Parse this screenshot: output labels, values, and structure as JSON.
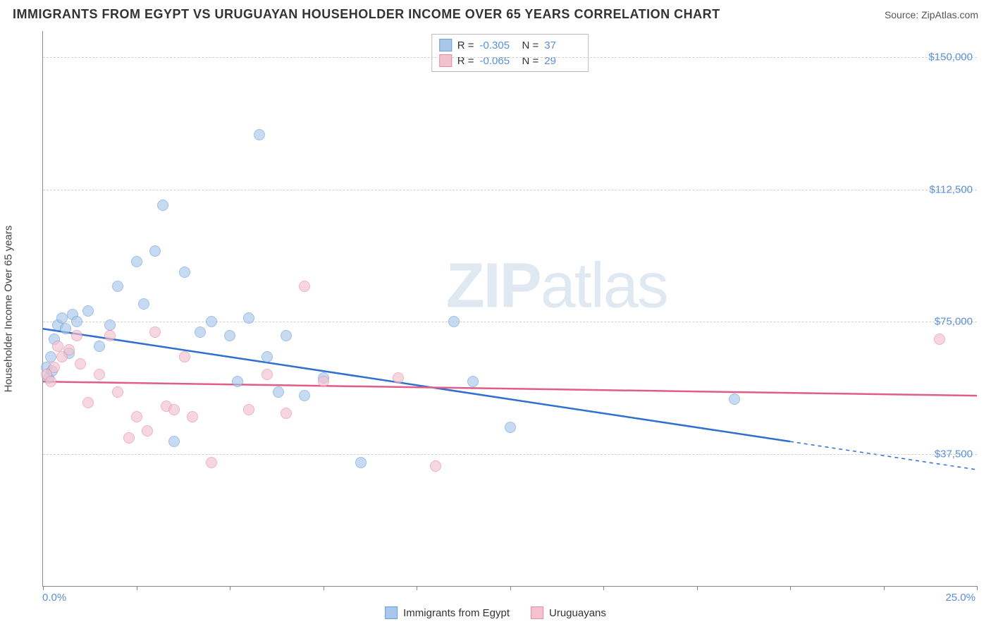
{
  "title": "IMMIGRANTS FROM EGYPT VS URUGUAYAN HOUSEHOLDER INCOME OVER 65 YEARS CORRELATION CHART",
  "source": "Source: ZipAtlas.com",
  "watermark_a": "ZIP",
  "watermark_b": "atlas",
  "chart": {
    "type": "scatter",
    "y_axis_label": "Householder Income Over 65 years",
    "x_min": 0.0,
    "x_max": 25.0,
    "y_min": 0,
    "y_max": 157500,
    "y_ticks": [
      37500,
      75000,
      112500,
      150000
    ],
    "y_tick_labels": [
      "$37,500",
      "$75,000",
      "$112,500",
      "$150,000"
    ],
    "x_label_min": "0.0%",
    "x_label_max": "25.0%",
    "x_minor_ticks": [
      0,
      2.5,
      5,
      7.5,
      10,
      12.5,
      15,
      17.5,
      20,
      22.5,
      25
    ],
    "background": "#ffffff",
    "grid_color": "#d0d0d0",
    "axis_color": "#888888",
    "label_color": "#5b8fd6",
    "series": [
      {
        "name": "Immigrants from Egypt",
        "r": -0.305,
        "n": 37,
        "fill": "#a9c7eb",
        "stroke": "#6f9fd8",
        "line_color": "#2f6fd0",
        "trend": {
          "x1": 0,
          "y1": 73000,
          "x2": 20,
          "y2": 41000,
          "extend_x": 25,
          "extend_y": 33000
        },
        "points": [
          [
            0.1,
            62000
          ],
          [
            0.2,
            65000
          ],
          [
            0.3,
            70000
          ],
          [
            0.4,
            74000
          ],
          [
            0.5,
            76000
          ],
          [
            0.6,
            73000
          ],
          [
            0.7,
            66000
          ],
          [
            0.8,
            77000
          ],
          [
            0.9,
            75000
          ],
          [
            1.2,
            78000
          ],
          [
            1.5,
            68000
          ],
          [
            1.8,
            74000
          ],
          [
            2.0,
            85000
          ],
          [
            2.5,
            92000
          ],
          [
            2.7,
            80000
          ],
          [
            3.0,
            95000
          ],
          [
            3.2,
            108000
          ],
          [
            3.5,
            41000
          ],
          [
            3.8,
            89000
          ],
          [
            4.2,
            72000
          ],
          [
            4.5,
            75000
          ],
          [
            5.0,
            71000
          ],
          [
            5.2,
            58000
          ],
          [
            5.5,
            76000
          ],
          [
            5.8,
            128000
          ],
          [
            6.0,
            65000
          ],
          [
            6.3,
            55000
          ],
          [
            6.5,
            71000
          ],
          [
            7.0,
            54000
          ],
          [
            7.5,
            59000
          ],
          [
            8.5,
            35000
          ],
          [
            11.0,
            75000
          ],
          [
            11.5,
            58000
          ],
          [
            12.5,
            45000
          ],
          [
            18.5,
            53000
          ],
          [
            0.15,
            59000
          ],
          [
            0.25,
            61000
          ]
        ]
      },
      {
        "name": "Uruguayans",
        "r": -0.065,
        "n": 29,
        "fill": "#f4c2ce",
        "stroke": "#e88ba3",
        "line_color": "#e05d88",
        "trend": {
          "x1": 0,
          "y1": 58000,
          "x2": 25,
          "y2": 54000
        },
        "points": [
          [
            0.1,
            60000
          ],
          [
            0.2,
            58000
          ],
          [
            0.3,
            62000
          ],
          [
            0.4,
            68000
          ],
          [
            0.5,
            65000
          ],
          [
            0.7,
            67000
          ],
          [
            0.9,
            71000
          ],
          [
            1.0,
            63000
          ],
          [
            1.2,
            52000
          ],
          [
            1.5,
            60000
          ],
          [
            1.8,
            71000
          ],
          [
            2.0,
            55000
          ],
          [
            2.3,
            42000
          ],
          [
            2.5,
            48000
          ],
          [
            2.8,
            44000
          ],
          [
            3.0,
            72000
          ],
          [
            3.3,
            51000
          ],
          [
            3.5,
            50000
          ],
          [
            3.8,
            65000
          ],
          [
            4.0,
            48000
          ],
          [
            4.5,
            35000
          ],
          [
            5.5,
            50000
          ],
          [
            6.0,
            60000
          ],
          [
            6.5,
            49000
          ],
          [
            7.0,
            85000
          ],
          [
            7.5,
            58000
          ],
          [
            9.5,
            59000
          ],
          [
            10.5,
            34000
          ],
          [
            24.0,
            70000
          ]
        ]
      }
    ]
  },
  "legend_top": {
    "r_label": "R =",
    "n_label": "N ="
  }
}
